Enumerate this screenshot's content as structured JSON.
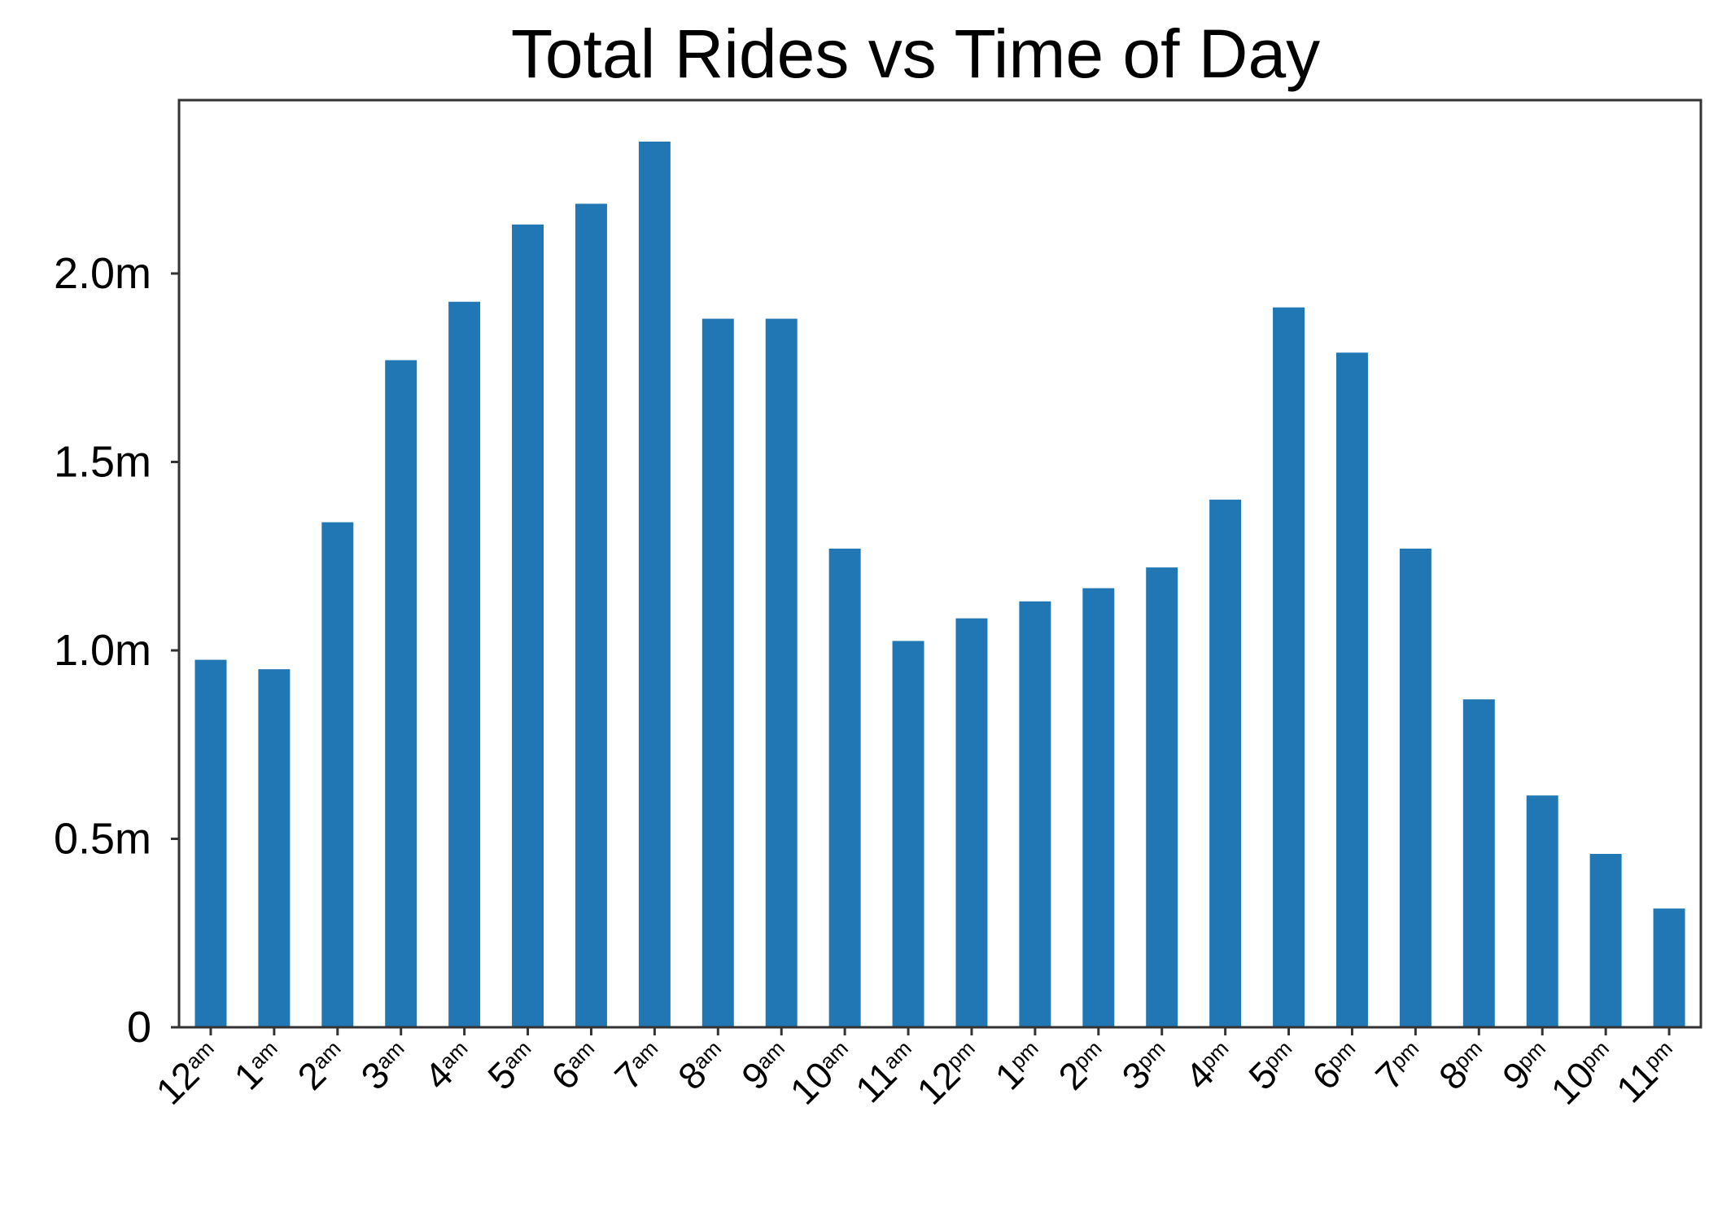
{
  "chart_data": {
    "type": "bar",
    "title": "Total Rides vs Time of Day",
    "xlabel": "",
    "ylabel": "",
    "categories": [
      "12am",
      "1am",
      "2am",
      "3am",
      "4am",
      "5am",
      "6am",
      "7am",
      "8am",
      "9am",
      "10am",
      "11am",
      "12pm",
      "1pm",
      "2pm",
      "3pm",
      "4pm",
      "5pm",
      "6pm",
      "7pm",
      "8pm",
      "9pm",
      "10pm",
      "11pm"
    ],
    "category_labels": [
      {
        "main": "12",
        "suffix": "am"
      },
      {
        "main": "1",
        "suffix": "am"
      },
      {
        "main": "2",
        "suffix": "am"
      },
      {
        "main": "3",
        "suffix": "am"
      },
      {
        "main": "4",
        "suffix": "am"
      },
      {
        "main": "5",
        "suffix": "am"
      },
      {
        "main": "6",
        "suffix": "am"
      },
      {
        "main": "7",
        "suffix": "am"
      },
      {
        "main": "8",
        "suffix": "am"
      },
      {
        "main": "9",
        "suffix": "am"
      },
      {
        "main": "10",
        "suffix": "am"
      },
      {
        "main": "11",
        "suffix": "am"
      },
      {
        "main": "12",
        "suffix": "pm"
      },
      {
        "main": "1",
        "suffix": "pm"
      },
      {
        "main": "2",
        "suffix": "pm"
      },
      {
        "main": "3",
        "suffix": "pm"
      },
      {
        "main": "4",
        "suffix": "pm"
      },
      {
        "main": "5",
        "suffix": "pm"
      },
      {
        "main": "6",
        "suffix": "pm"
      },
      {
        "main": "7",
        "suffix": "pm"
      },
      {
        "main": "8",
        "suffix": "pm"
      },
      {
        "main": "9",
        "suffix": "pm"
      },
      {
        "main": "10",
        "suffix": "pm"
      },
      {
        "main": "11",
        "suffix": "pm"
      }
    ],
    "values": [
      975000,
      950000,
      1340000,
      1770000,
      1925000,
      2130000,
      2185000,
      2350000,
      1880000,
      1880000,
      1270000,
      1025000,
      1085000,
      1130000,
      1165000,
      1220000,
      1400000,
      1910000,
      1790000,
      1270000,
      870000,
      615000,
      460000,
      315000
    ],
    "ylim": [
      0,
      2460000
    ],
    "y_ticks": [
      {
        "value": 0,
        "label": "0"
      },
      {
        "value": 500000,
        "label": "0.5m"
      },
      {
        "value": 1000000,
        "label": "1.0m"
      },
      {
        "value": 1500000,
        "label": "1.5m"
      },
      {
        "value": 2000000,
        "label": "2.0m"
      }
    ],
    "bar_color": "#2077b4",
    "axis_color": "#333333",
    "grid": false,
    "legend": "none"
  }
}
